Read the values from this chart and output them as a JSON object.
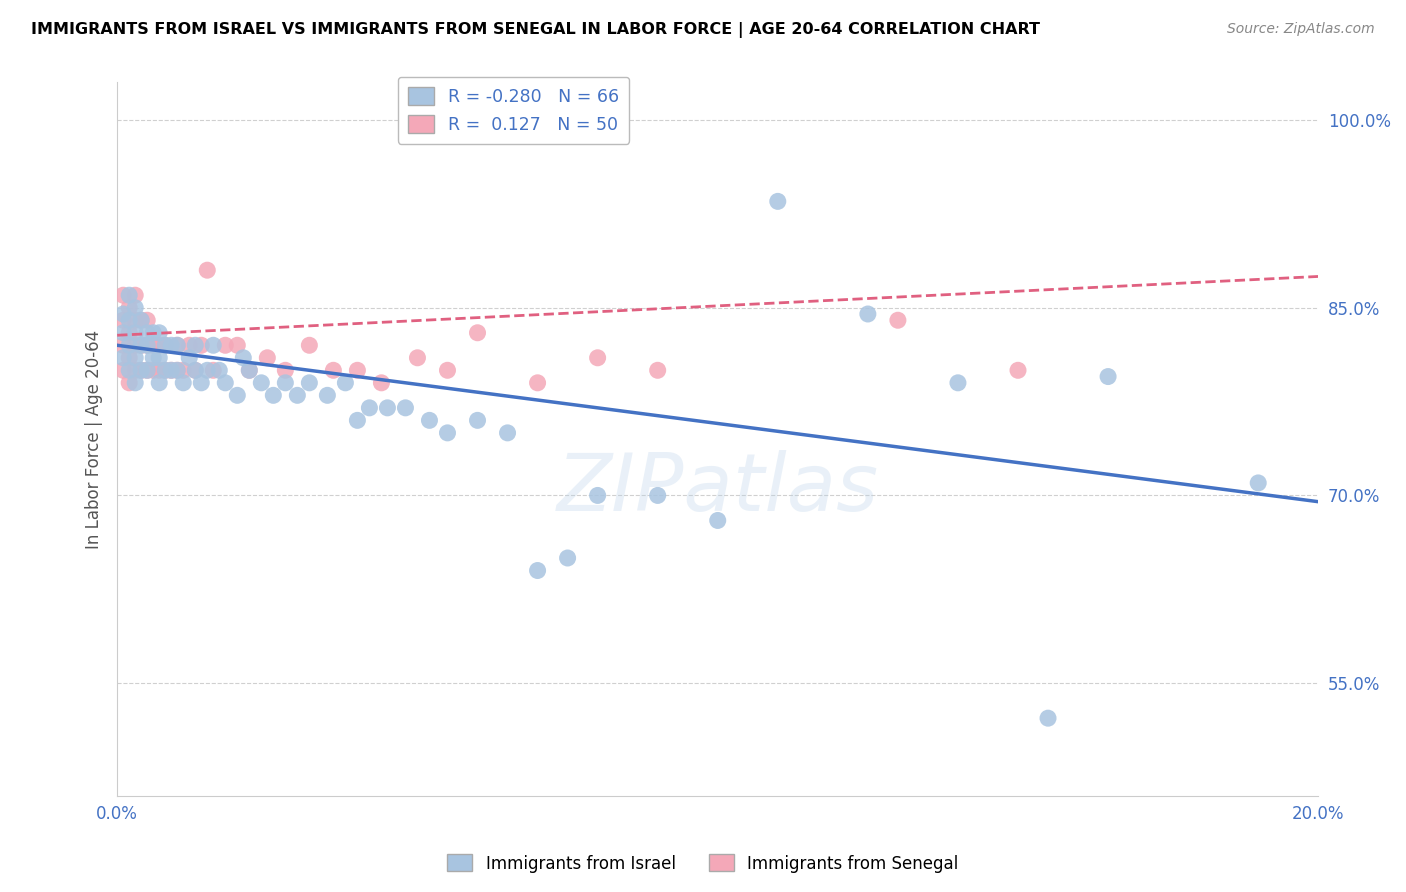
{
  "title": "IMMIGRANTS FROM ISRAEL VS IMMIGRANTS FROM SENEGAL IN LABOR FORCE | AGE 20-64 CORRELATION CHART",
  "source": "Source: ZipAtlas.com",
  "ylabel": "In Labor Force | Age 20-64",
  "xlim": [
    0.0,
    0.2
  ],
  "ylim": [
    0.46,
    1.03
  ],
  "ytick_vals": [
    0.55,
    0.7,
    0.85,
    1.0
  ],
  "ytick_labels": [
    "55.0%",
    "70.0%",
    "85.0%",
    "100.0%"
  ],
  "xtick_vals": [
    0.0,
    0.04,
    0.08,
    0.12,
    0.16,
    0.2
  ],
  "xtick_labels": [
    "0.0%",
    "",
    "",
    "",
    "",
    "20.0%"
  ],
  "israel_R": -0.28,
  "israel_N": 66,
  "senegal_R": 0.127,
  "senegal_N": 50,
  "israel_color": "#a8c4e0",
  "senegal_color": "#f4a8b8",
  "israel_line_color": "#4472C4",
  "senegal_line_color": "#E06080",
  "blue_text_color": "#4472C4",
  "watermark": "ZIPatlas",
  "israel_x": [
    0.001,
    0.001,
    0.001,
    0.002,
    0.002,
    0.002,
    0.002,
    0.003,
    0.003,
    0.003,
    0.003,
    0.004,
    0.004,
    0.004,
    0.005,
    0.005,
    0.005,
    0.006,
    0.006,
    0.007,
    0.007,
    0.007,
    0.008,
    0.008,
    0.009,
    0.009,
    0.01,
    0.01,
    0.011,
    0.012,
    0.013,
    0.013,
    0.014,
    0.015,
    0.016,
    0.017,
    0.018,
    0.02,
    0.021,
    0.022,
    0.024,
    0.026,
    0.028,
    0.03,
    0.032,
    0.035,
    0.038,
    0.04,
    0.042,
    0.045,
    0.048,
    0.052,
    0.055,
    0.06,
    0.065,
    0.07,
    0.075,
    0.08,
    0.09,
    0.1,
    0.11,
    0.125,
    0.14,
    0.155,
    0.165,
    0.19
  ],
  "israel_y": [
    0.81,
    0.83,
    0.845,
    0.8,
    0.82,
    0.84,
    0.86,
    0.79,
    0.81,
    0.83,
    0.85,
    0.8,
    0.82,
    0.84,
    0.8,
    0.82,
    0.83,
    0.81,
    0.83,
    0.79,
    0.81,
    0.83,
    0.8,
    0.82,
    0.8,
    0.82,
    0.8,
    0.82,
    0.79,
    0.81,
    0.8,
    0.82,
    0.79,
    0.8,
    0.82,
    0.8,
    0.79,
    0.78,
    0.81,
    0.8,
    0.79,
    0.78,
    0.79,
    0.78,
    0.79,
    0.78,
    0.79,
    0.76,
    0.77,
    0.77,
    0.77,
    0.76,
    0.75,
    0.76,
    0.75,
    0.64,
    0.65,
    0.7,
    0.7,
    0.68,
    0.935,
    0.845,
    0.79,
    0.522,
    0.795,
    0.71
  ],
  "senegal_x": [
    0.001,
    0.001,
    0.001,
    0.001,
    0.002,
    0.002,
    0.002,
    0.002,
    0.003,
    0.003,
    0.003,
    0.003,
    0.004,
    0.004,
    0.004,
    0.005,
    0.005,
    0.005,
    0.006,
    0.006,
    0.007,
    0.007,
    0.008,
    0.008,
    0.009,
    0.01,
    0.01,
    0.011,
    0.012,
    0.013,
    0.014,
    0.015,
    0.016,
    0.018,
    0.02,
    0.022,
    0.025,
    0.028,
    0.032,
    0.036,
    0.04,
    0.044,
    0.05,
    0.055,
    0.06,
    0.07,
    0.08,
    0.09,
    0.13,
    0.15
  ],
  "senegal_y": [
    0.8,
    0.82,
    0.84,
    0.86,
    0.79,
    0.81,
    0.83,
    0.85,
    0.8,
    0.82,
    0.84,
    0.86,
    0.8,
    0.82,
    0.84,
    0.8,
    0.82,
    0.84,
    0.8,
    0.82,
    0.8,
    0.82,
    0.8,
    0.82,
    0.8,
    0.8,
    0.82,
    0.8,
    0.82,
    0.8,
    0.82,
    0.88,
    0.8,
    0.82,
    0.82,
    0.8,
    0.81,
    0.8,
    0.82,
    0.8,
    0.8,
    0.79,
    0.81,
    0.8,
    0.83,
    0.79,
    0.81,
    0.8,
    0.84,
    0.8
  ],
  "israel_line_x": [
    0.0,
    0.2
  ],
  "israel_line_y": [
    0.82,
    0.695
  ],
  "senegal_line_x": [
    0.0,
    0.2
  ],
  "senegal_line_y": [
    0.828,
    0.875
  ]
}
